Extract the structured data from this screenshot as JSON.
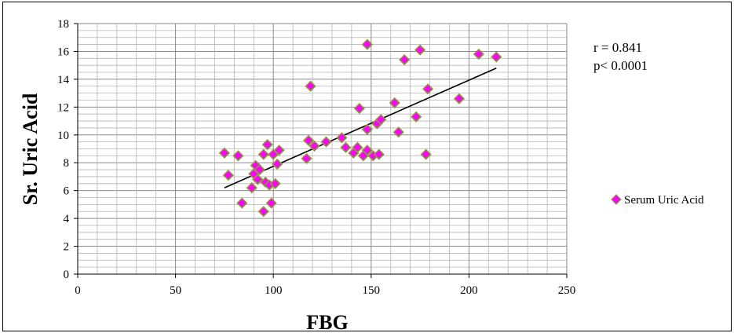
{
  "chart_data": {
    "type": "scatter",
    "xlabel": "FBG",
    "ylabel": "Sr. Uric Acid",
    "xlim": [
      0,
      250
    ],
    "ylim": [
      0,
      18
    ],
    "x_ticks": [
      "0",
      "50",
      "100",
      "150",
      "200",
      "250"
    ],
    "y_ticks": [
      "0",
      "2",
      "4",
      "6",
      "8",
      "10",
      "12",
      "14",
      "16",
      "18"
    ],
    "grid": true,
    "legend_position": "right",
    "annotations": [
      "r = 0.841",
      "p< 0.0001"
    ],
    "series": [
      {
        "name": "Serum Uric Acid",
        "marker": "diamond",
        "color": "#ff00ff",
        "edge_color": "#8a9a3a",
        "points": [
          [
            75,
            8.7
          ],
          [
            77,
            7.1
          ],
          [
            82,
            8.5
          ],
          [
            84,
            5.1
          ],
          [
            89,
            6.2
          ],
          [
            90,
            7.2
          ],
          [
            91,
            7.8
          ],
          [
            92,
            6.8
          ],
          [
            93,
            7.5
          ],
          [
            95,
            4.5
          ],
          [
            95,
            8.6
          ],
          [
            96,
            6.6
          ],
          [
            97,
            9.3
          ],
          [
            98,
            6.4
          ],
          [
            99,
            5.1
          ],
          [
            100,
            8.6
          ],
          [
            101,
            6.5
          ],
          [
            102,
            7.9
          ],
          [
            103,
            8.9
          ],
          [
            117,
            8.3
          ],
          [
            118,
            9.6
          ],
          [
            119,
            13.5
          ],
          [
            121,
            9.2
          ],
          [
            127,
            9.5
          ],
          [
            135,
            9.8
          ],
          [
            137,
            9.1
          ],
          [
            141,
            8.7
          ],
          [
            143,
            9.1
          ],
          [
            144,
            11.9
          ],
          [
            146,
            8.5
          ],
          [
            148,
            10.4
          ],
          [
            148,
            16.5
          ],
          [
            148,
            8.9
          ],
          [
            151,
            8.5
          ],
          [
            153,
            10.8
          ],
          [
            154,
            8.6
          ],
          [
            155,
            11.1
          ],
          [
            162,
            12.3
          ],
          [
            164,
            10.2
          ],
          [
            167,
            15.4
          ],
          [
            173,
            11.3
          ],
          [
            175,
            16.1
          ],
          [
            178,
            8.6
          ],
          [
            179,
            13.3
          ],
          [
            195,
            12.6
          ],
          [
            205,
            15.8
          ],
          [
            214,
            15.6
          ]
        ]
      }
    ],
    "trendline": {
      "x": [
        75,
        214
      ],
      "y": [
        6.2,
        14.8
      ]
    }
  }
}
